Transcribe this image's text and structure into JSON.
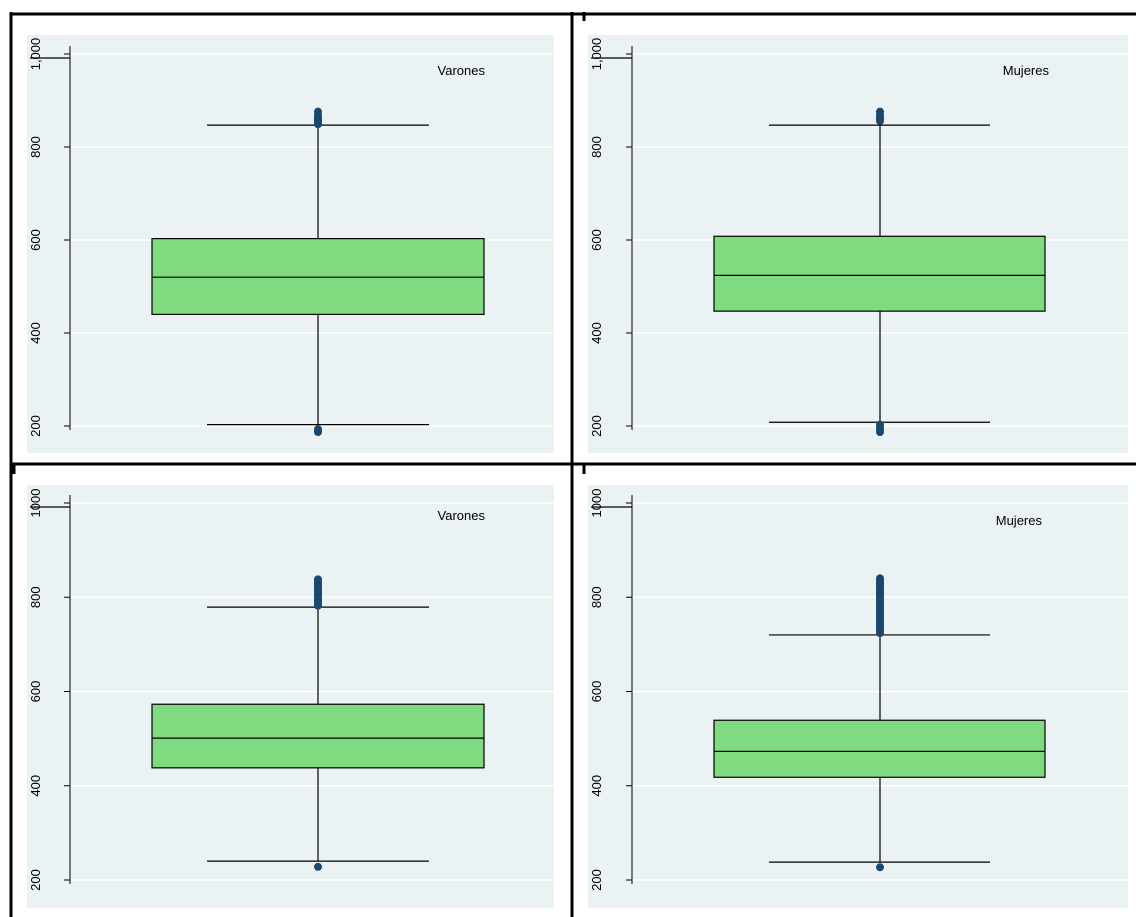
{
  "colors": {
    "plot_bg": "#eaf2f3",
    "box_fill": "#80da80",
    "outlier": "#1a476f",
    "gridline": "#ffffff",
    "frame": "#000000"
  },
  "chart_data": [
    {
      "type": "box",
      "label": "Varones",
      "ylim": [
        180,
        1050
      ],
      "yticks": [
        200,
        400,
        600,
        800,
        1000
      ],
      "ytick_labels": [
        "200",
        "400",
        "600",
        "800",
        "1,000"
      ],
      "grid": true,
      "box": {
        "whisker_low": 203,
        "q1": 440,
        "median": 520,
        "q3": 603,
        "whisker_high": 847
      },
      "outliers": [
        187,
        190,
        193,
        849,
        853,
        857,
        860,
        864,
        868,
        876
      ]
    },
    {
      "type": "box",
      "label": "Mujeres",
      "ylim": [
        180,
        1050
      ],
      "yticks": [
        200,
        400,
        600,
        800,
        1000
      ],
      "ytick_labels": [
        "200",
        "400",
        "600",
        "800",
        "1,000"
      ],
      "grid": true,
      "box": {
        "whisker_low": 208,
        "q1": 447,
        "median": 524,
        "q3": 608,
        "whisker_high": 847
      },
      "outliers": [
        187,
        192,
        198,
        203,
        856,
        860,
        864,
        868,
        876
      ]
    },
    {
      "type": "box",
      "label": "Varones",
      "ylim": [
        180,
        1050
      ],
      "yticks": [
        200,
        400,
        600,
        800,
        1000
      ],
      "ytick_labels": [
        "200",
        "400",
        "600",
        "800",
        "1000"
      ],
      "grid": true,
      "box": {
        "whisker_low": 240,
        "q1": 438,
        "median": 501,
        "q3": 573,
        "whisker_high": 779
      },
      "outliers": [
        228,
        782,
        786,
        790,
        794,
        798,
        802,
        806,
        810,
        814,
        818,
        822,
        826,
        830,
        834,
        838
      ]
    },
    {
      "type": "box",
      "label": "Mujeres",
      "ylim": [
        180,
        1050
      ],
      "yticks": [
        200,
        400,
        600,
        800,
        1000
      ],
      "ytick_labels": [
        "200",
        "400",
        "600",
        "800",
        "1000"
      ],
      "grid": true,
      "box": {
        "whisker_low": 238,
        "q1": 418,
        "median": 473,
        "q3": 539,
        "whisker_high": 720
      },
      "outliers": [
        227,
        724,
        728,
        732,
        736,
        740,
        744,
        748,
        752,
        756,
        760,
        764,
        768,
        772,
        776,
        780,
        784,
        788,
        792,
        796,
        800,
        804,
        808,
        812,
        816,
        820,
        824,
        828,
        832,
        836,
        840
      ]
    }
  ]
}
